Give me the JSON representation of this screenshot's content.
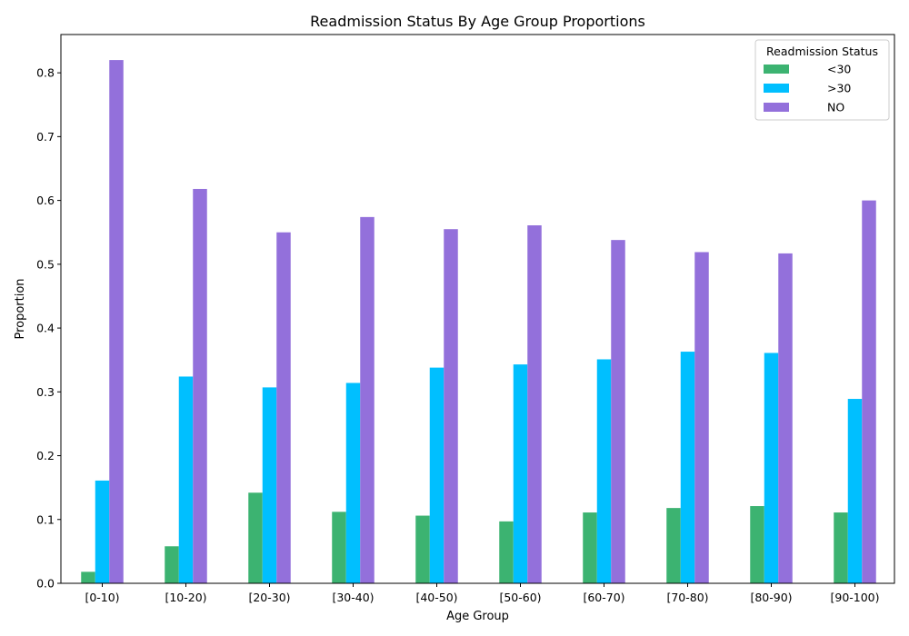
{
  "chart_data": {
    "type": "bar",
    "title": "Readmission Status By Age Group Proportions",
    "xlabel": "Age Group",
    "ylabel": "Proportion",
    "ylim": [
      0,
      0.86
    ],
    "yticks": [
      0.0,
      0.1,
      0.2,
      0.3,
      0.4,
      0.5,
      0.6,
      0.7,
      0.8
    ],
    "ytick_labels": [
      "0.0",
      "0.1",
      "0.2",
      "0.3",
      "0.4",
      "0.5",
      "0.6",
      "0.7",
      "0.8"
    ],
    "categories": [
      "[0-10)",
      "[10-20)",
      "[20-30)",
      "[30-40)",
      "[40-50)",
      "[50-60)",
      "[60-70)",
      "[70-80)",
      "[80-90)",
      "[90-100)"
    ],
    "legend": {
      "title": "Readmission Status",
      "position": "top-right"
    },
    "grid": false,
    "series": [
      {
        "name": "<30",
        "color": "#3cb371",
        "values": [
          0.018,
          0.058,
          0.142,
          0.112,
          0.106,
          0.097,
          0.111,
          0.118,
          0.121,
          0.111
        ]
      },
      {
        "name": ">30",
        "color": "#00bfff",
        "values": [
          0.161,
          0.324,
          0.307,
          0.314,
          0.338,
          0.343,
          0.351,
          0.363,
          0.361,
          0.289
        ]
      },
      {
        "name": "NO",
        "color": "#9370db",
        "values": [
          0.82,
          0.618,
          0.55,
          0.574,
          0.555,
          0.561,
          0.538,
          0.519,
          0.517,
          0.6
        ]
      }
    ]
  }
}
